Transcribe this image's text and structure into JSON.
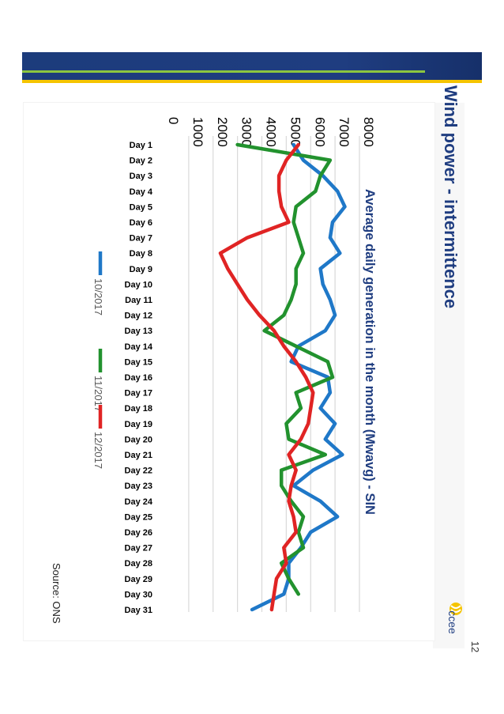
{
  "slide": {
    "title": "Wind power - intermittence",
    "source": "Source: ONS",
    "page_number": "12",
    "logo_text": "ccee"
  },
  "colors": {
    "band": "#1f3d80",
    "accent_green": "#8cc63f",
    "accent_yellow": "#f5c400"
  },
  "chart_data": {
    "type": "line",
    "title": "Average daily generation in the month (Mwavg) - SIN",
    "xlabel": "",
    "ylabel": "",
    "ylim": [
      0,
      8000
    ],
    "yticks": [
      0,
      1000,
      2000,
      3000,
      4000,
      5000,
      6000,
      7000,
      8000
    ],
    "grid": true,
    "legend_position": "bottom",
    "categories": [
      "Day 1",
      "Day 2",
      "Day 3",
      "Day 4",
      "Day 5",
      "Day 6",
      "Day 7",
      "Day 8",
      "Day 9",
      "Day 10",
      "Day 11",
      "Day 12",
      "Day 13",
      "Day 14",
      "Day 15",
      "Day 16",
      "Day 17",
      "Day 18",
      "Day 19",
      "Day 20",
      "Day 21",
      "Day 22",
      "Day 23",
      "Day 24",
      "Day 25",
      "Day 26",
      "Day 27",
      "Day 28",
      "Day 29",
      "Day 30",
      "Day 31"
    ],
    "series": [
      {
        "name": "10/2017",
        "color": "#1f78c8",
        "values": [
          5300,
          5700,
          6500,
          7100,
          7400,
          6900,
          6800,
          7200,
          6400,
          6500,
          6800,
          7000,
          6600,
          5500,
          5200,
          6700,
          6800,
          6400,
          7000,
          6600,
          7300,
          6100,
          5300,
          6400,
          7100,
          6000,
          5600,
          5100,
          5100,
          4900,
          3600
        ]
      },
      {
        "name": "11/2017",
        "color": "#22922e",
        "values": [
          3000,
          6800,
          6400,
          6200,
          5400,
          5300,
          5500,
          5700,
          5400,
          5400,
          5200,
          4900,
          4100,
          5400,
          6700,
          6900,
          5400,
          5600,
          5000,
          5100,
          6600,
          4800,
          4800,
          5200,
          5700,
          5500,
          5700,
          4800,
          5100,
          5500,
          null
        ]
      },
      {
        "name": "12/2017",
        "color": "#e02424",
        "values": [
          5500,
          5000,
          4700,
          4700,
          4800,
          5100,
          3400,
          2300,
          2600,
          3000,
          3400,
          3900,
          4500,
          4900,
          5400,
          5800,
          6100,
          6000,
          5900,
          5600,
          5100,
          5400,
          5200,
          5100,
          5300,
          5400,
          4900,
          5000,
          4600,
          4500,
          4400
        ]
      }
    ]
  }
}
